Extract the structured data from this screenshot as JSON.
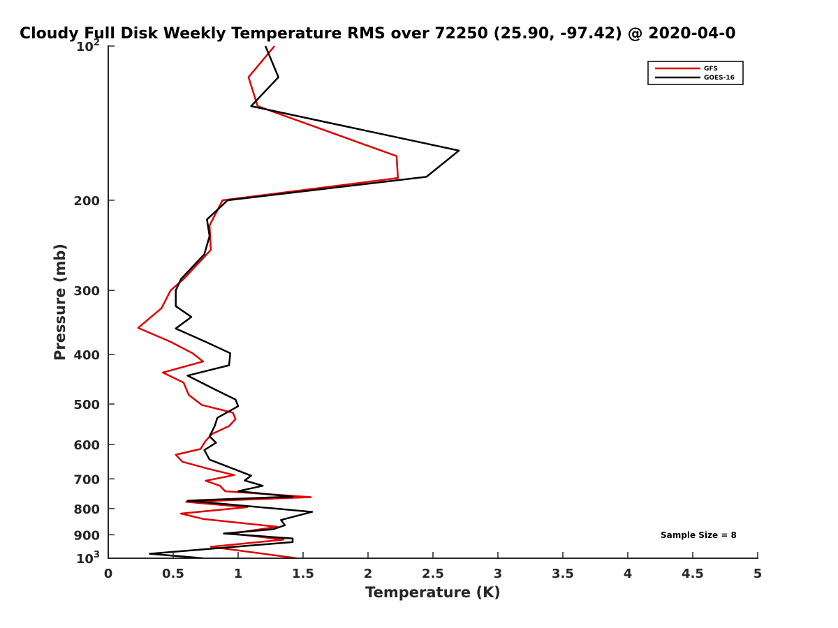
{
  "chart_data": {
    "type": "line",
    "title": "Cloudy Full Disk Weekly Temperature RMS over 72250 (25.90, -97.42) @ 2020-04-0",
    "xlabel": "Temperature (K)",
    "ylabel": "Pressure (mb)",
    "xlim": [
      0,
      5
    ],
    "ylim": [
      1000,
      100
    ],
    "yscale": "log",
    "y_reversed": true,
    "grid": false,
    "legend_position": "top-right",
    "x_ticks": [
      "0",
      "0.5",
      "1",
      "1.5",
      "2",
      "2.5",
      "3",
      "3.5",
      "4",
      "4.5",
      "5"
    ],
    "y_ticks": [
      {
        "value": 100,
        "base": "10",
        "exp": "2"
      },
      {
        "value": 200,
        "label": "200"
      },
      {
        "value": 300,
        "label": "300"
      },
      {
        "value": 400,
        "label": "400"
      },
      {
        "value": 500,
        "label": "500"
      },
      {
        "value": 600,
        "label": "600"
      },
      {
        "value": 700,
        "label": "700"
      },
      {
        "value": 800,
        "label": "800"
      },
      {
        "value": 900,
        "label": "900"
      },
      {
        "value": 1000,
        "base": "10",
        "exp": "3"
      }
    ],
    "annotation": "Sample Size = 8",
    "series": [
      {
        "name": "GFS",
        "color": "#e00000",
        "points": [
          [
            1.28,
            100
          ],
          [
            1.08,
            115
          ],
          [
            1.15,
            131
          ],
          [
            2.22,
            164
          ],
          [
            2.23,
            181
          ],
          [
            0.88,
            200
          ],
          [
            0.78,
            224
          ],
          [
            0.79,
            250
          ],
          [
            0.58,
            285
          ],
          [
            0.48,
            300
          ],
          [
            0.41,
            325
          ],
          [
            0.23,
            355
          ],
          [
            0.48,
            378
          ],
          [
            0.65,
            398
          ],
          [
            0.73,
            413
          ],
          [
            0.42,
            434
          ],
          [
            0.58,
            454
          ],
          [
            0.62,
            480
          ],
          [
            0.72,
            502
          ],
          [
            0.96,
            520
          ],
          [
            0.98,
            535
          ],
          [
            0.93,
            552
          ],
          [
            0.8,
            572
          ],
          [
            0.75,
            590
          ],
          [
            0.71,
            612
          ],
          [
            0.52,
            628
          ],
          [
            0.57,
            648
          ],
          [
            0.78,
            670
          ],
          [
            0.97,
            688
          ],
          [
            0.75,
            706
          ],
          [
            0.86,
            722
          ],
          [
            0.9,
            740
          ],
          [
            1.56,
            760
          ],
          [
            0.6,
            776
          ],
          [
            1.07,
            795
          ],
          [
            0.56,
            818
          ],
          [
            0.73,
            838
          ],
          [
            1.3,
            868
          ],
          [
            0.95,
            895
          ],
          [
            1.35,
            920
          ],
          [
            0.79,
            950
          ],
          [
            1.45,
            1000
          ]
        ]
      },
      {
        "name": "GOES-16",
        "color": "#000000",
        "points": [
          [
            1.21,
            100
          ],
          [
            1.31,
            115
          ],
          [
            1.1,
            131
          ],
          [
            2.7,
            160
          ],
          [
            2.45,
            180
          ],
          [
            0.92,
            200
          ],
          [
            0.76,
            218
          ],
          [
            0.78,
            235
          ],
          [
            0.74,
            255
          ],
          [
            0.56,
            285
          ],
          [
            0.52,
            300
          ],
          [
            0.52,
            322
          ],
          [
            0.64,
            338
          ],
          [
            0.52,
            356
          ],
          [
            0.75,
            378
          ],
          [
            0.94,
            398
          ],
          [
            0.93,
            420
          ],
          [
            0.61,
            440
          ],
          [
            0.82,
            468
          ],
          [
            0.98,
            490
          ],
          [
            1.0,
            505
          ],
          [
            0.84,
            532
          ],
          [
            0.82,
            552
          ],
          [
            0.78,
            578
          ],
          [
            0.83,
            595
          ],
          [
            0.74,
            615
          ],
          [
            0.78,
            642
          ],
          [
            0.97,
            670
          ],
          [
            1.1,
            690
          ],
          [
            1.05,
            705
          ],
          [
            1.19,
            722
          ],
          [
            1.0,
            740
          ],
          [
            1.42,
            758
          ],
          [
            0.61,
            772
          ],
          [
            1.57,
            812
          ],
          [
            1.33,
            842
          ],
          [
            1.36,
            862
          ],
          [
            1.27,
            878
          ],
          [
            0.89,
            895
          ],
          [
            1.42,
            915
          ],
          [
            1.42,
            930
          ],
          [
            0.32,
            980
          ],
          [
            0.73,
            1000
          ]
        ]
      }
    ]
  }
}
